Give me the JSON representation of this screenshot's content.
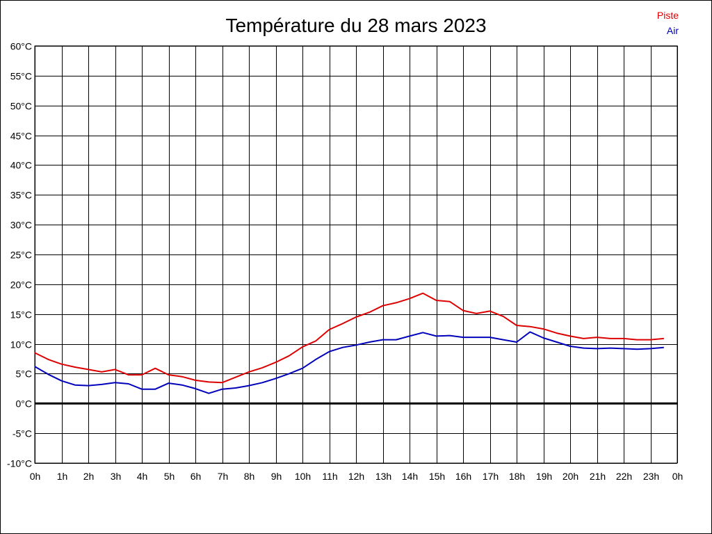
{
  "chart_data": {
    "type": "line",
    "title": "Température du 28 mars 2023",
    "xlabel": "",
    "ylabel": "",
    "x_tick_labels": [
      "0h",
      "1h",
      "2h",
      "3h",
      "4h",
      "5h",
      "6h",
      "7h",
      "8h",
      "9h",
      "10h",
      "11h",
      "12h",
      "13h",
      "14h",
      "15h",
      "16h",
      "17h",
      "18h",
      "19h",
      "20h",
      "21h",
      "22h",
      "23h",
      "0h"
    ],
    "y_tick_labels": [
      "60°C",
      "55°C",
      "50°C",
      "45°C",
      "40°C",
      "35°C",
      "30°C",
      "25°C",
      "20°C",
      "15°C",
      "10°C",
      "5°C",
      "0°C",
      "-5°C",
      "-10°C"
    ],
    "xlim": [
      0,
      24
    ],
    "ylim": [
      -10,
      60
    ],
    "grid": true,
    "legend_position": "top-right",
    "x": [
      0,
      0.5,
      1,
      1.5,
      2,
      2.5,
      3,
      3.5,
      4,
      4.5,
      5,
      5.5,
      6,
      6.5,
      7,
      7.5,
      8,
      8.5,
      9,
      9.5,
      10,
      10.5,
      11,
      11.5,
      12,
      12.5,
      13,
      13.5,
      14,
      14.5,
      15,
      15.5,
      16,
      16.5,
      17,
      17.5,
      18,
      18.5,
      19,
      19.5,
      20,
      20.5,
      21,
      21.5,
      22,
      22.5,
      23,
      23.5
    ],
    "series": [
      {
        "name": "Piste",
        "color": "#dd0000",
        "values": [
          8.5,
          7.4,
          6.6,
          6.1,
          5.7,
          5.3,
          5.7,
          4.8,
          4.8,
          5.9,
          4.8,
          4.5,
          3.9,
          3.6,
          3.5,
          4.4,
          5.3,
          6.0,
          6.9,
          8.0,
          9.5,
          10.5,
          12.4,
          13.4,
          14.5,
          15.3,
          16.4,
          16.9,
          17.6,
          18.5,
          17.3,
          17.1,
          15.6,
          15.1,
          15.5,
          14.6,
          13.1,
          12.9,
          12.5,
          11.8,
          11.3,
          10.9,
          11.1,
          10.9,
          10.9,
          10.7,
          10.7,
          10.9
        ]
      },
      {
        "name": "Air",
        "color": "#0000bb",
        "values": [
          6.2,
          4.9,
          3.8,
          3.1,
          3.0,
          3.2,
          3.5,
          3.3,
          2.4,
          2.4,
          3.4,
          3.1,
          2.5,
          1.7,
          2.4,
          2.6,
          3.0,
          3.5,
          4.2,
          5.0,
          5.9,
          7.4,
          8.7,
          9.4,
          9.8,
          10.3,
          10.7,
          10.7,
          11.3,
          11.9,
          11.3,
          11.4,
          11.1,
          11.1,
          11.1,
          10.7,
          10.3,
          12.0,
          11.0,
          10.3,
          9.6,
          9.3,
          9.2,
          9.3,
          9.2,
          9.1,
          9.2,
          9.4
        ]
      }
    ]
  }
}
